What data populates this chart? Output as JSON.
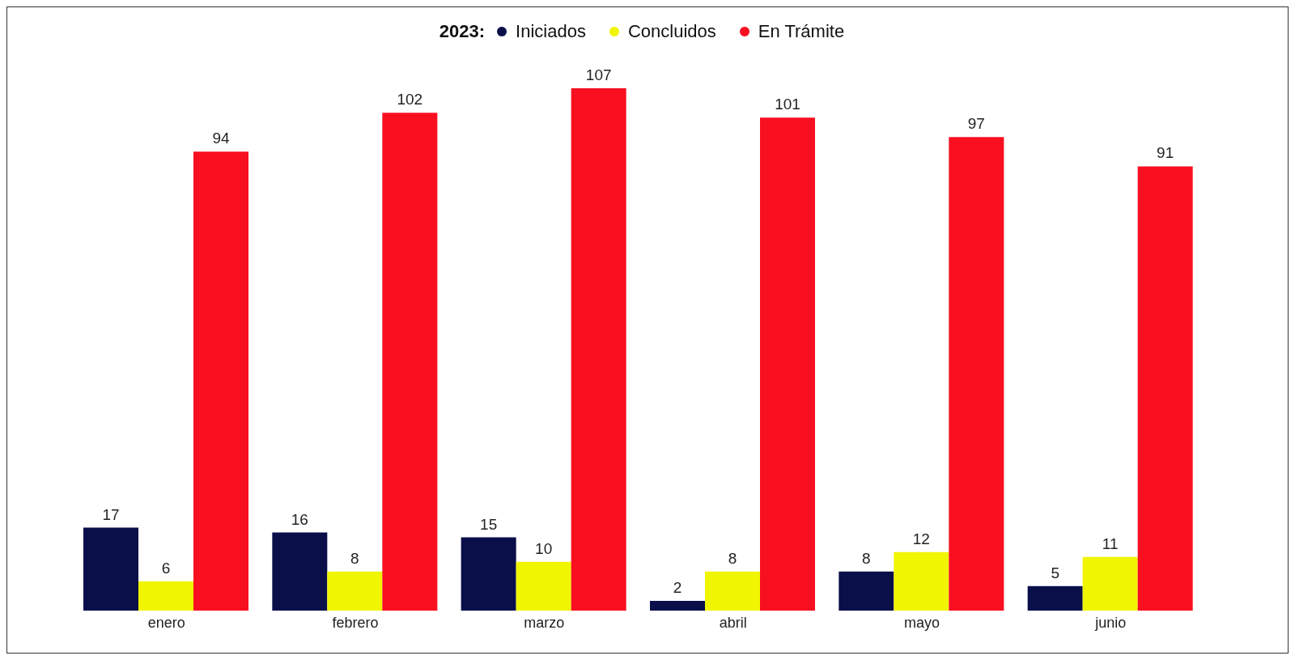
{
  "chart_data": {
    "type": "bar",
    "legend_title": "2023:",
    "categories": [
      "enero",
      "febrero",
      "marzo",
      "abril",
      "mayo",
      "junio"
    ],
    "series": [
      {
        "name": "Iniciados",
        "color": "#0a0f4a",
        "values": [
          17,
          16,
          15,
          2,
          8,
          5
        ]
      },
      {
        "name": "Concluidos",
        "color": "#f0f500",
        "values": [
          6,
          8,
          10,
          8,
          12,
          11
        ]
      },
      {
        "name": "En Trámite",
        "color": "#f80f20",
        "values": [
          94,
          102,
          107,
          101,
          97,
          91
        ]
      }
    ],
    "data_labels": true,
    "legend": "top",
    "grid": false
  }
}
